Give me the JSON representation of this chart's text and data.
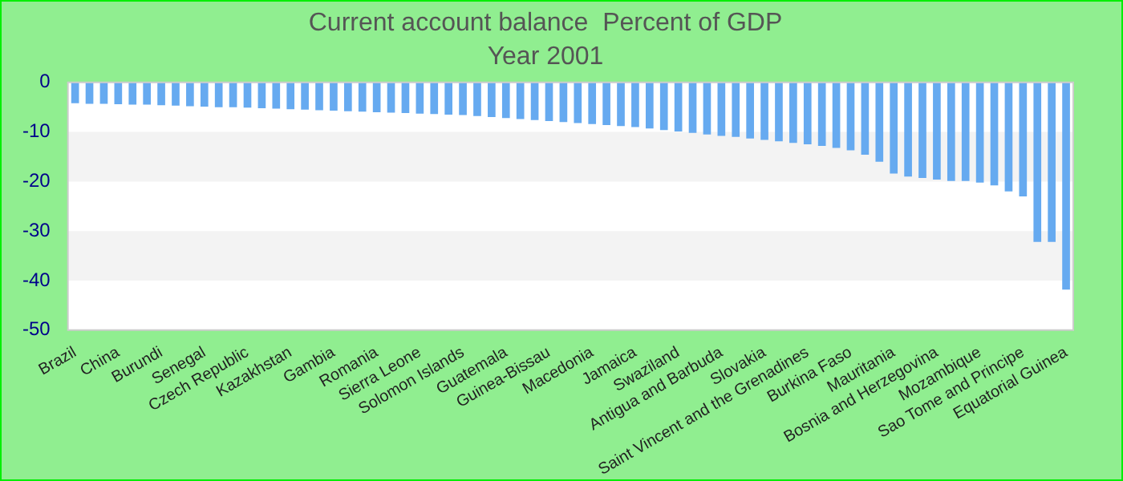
{
  "chart_data": {
    "type": "bar",
    "title": "Current account balance  Percent of GDP",
    "subtitle": "Year 2001",
    "categories": [
      "Brazil",
      null,
      null,
      "China",
      null,
      null,
      "Burundi",
      null,
      null,
      "Senegal",
      null,
      null,
      "Czech Republic",
      null,
      null,
      "Kazakhstan",
      null,
      null,
      "Gambia",
      null,
      null,
      "Romania",
      null,
      null,
      "Sierra Leone",
      null,
      null,
      "Solomon Islands",
      null,
      null,
      "Guatemala",
      null,
      null,
      "Guinea-Bissau",
      null,
      null,
      "Macedonia",
      null,
      null,
      "Jamaica",
      null,
      null,
      "Swaziland",
      null,
      null,
      "Antigua and Barbuda",
      null,
      null,
      "Slovakia",
      null,
      null,
      "Saint Vincent and the Grenadines",
      null,
      null,
      "Burkina Faso",
      null,
      null,
      "Mauritania",
      null,
      null,
      "Bosnia and Herzegovina",
      null,
      null,
      "Mozambique",
      null,
      null,
      "Sao Tome and Principe",
      null,
      null,
      "Equatorial Guinea"
    ],
    "values": [
      -4.2,
      -4.3,
      -4.3,
      -4.4,
      -4.5,
      -4.5,
      -4.6,
      -4.7,
      -4.8,
      -4.9,
      -5.0,
      -5.0,
      -5.1,
      -5.2,
      -5.3,
      -5.4,
      -5.5,
      -5.6,
      -5.7,
      -5.8,
      -5.9,
      -6.0,
      -6.1,
      -6.2,
      -6.3,
      -6.4,
      -6.5,
      -6.6,
      -6.8,
      -7.0,
      -7.2,
      -7.4,
      -7.6,
      -7.8,
      -8.0,
      -8.2,
      -8.4,
      -8.6,
      -8.8,
      -9.0,
      -9.3,
      -9.6,
      -9.9,
      -10.2,
      -10.5,
      -10.8,
      -11.0,
      -11.3,
      -11.6,
      -11.9,
      -12.2,
      -12.5,
      -12.8,
      -13.2,
      -13.7,
      -14.6,
      -16.0,
      -18.4,
      -19.0,
      -19.3,
      -19.6,
      -19.9,
      -19.9,
      -20.2,
      -20.8,
      -22.0,
      -23.0,
      -32.2,
      -32.2,
      -41.8
    ],
    "color": "#66aaf0",
    "ylim": [
      -50,
      0
    ],
    "yticks": [
      -50,
      -40,
      -30,
      -20,
      -10,
      0
    ],
    "bands": [
      {
        "axis": "y",
        "from": -10,
        "to": -20,
        "color": "#f3f3f3"
      },
      {
        "axis": "y",
        "from": -30,
        "to": -40,
        "color": "#f3f3f3"
      }
    ]
  }
}
